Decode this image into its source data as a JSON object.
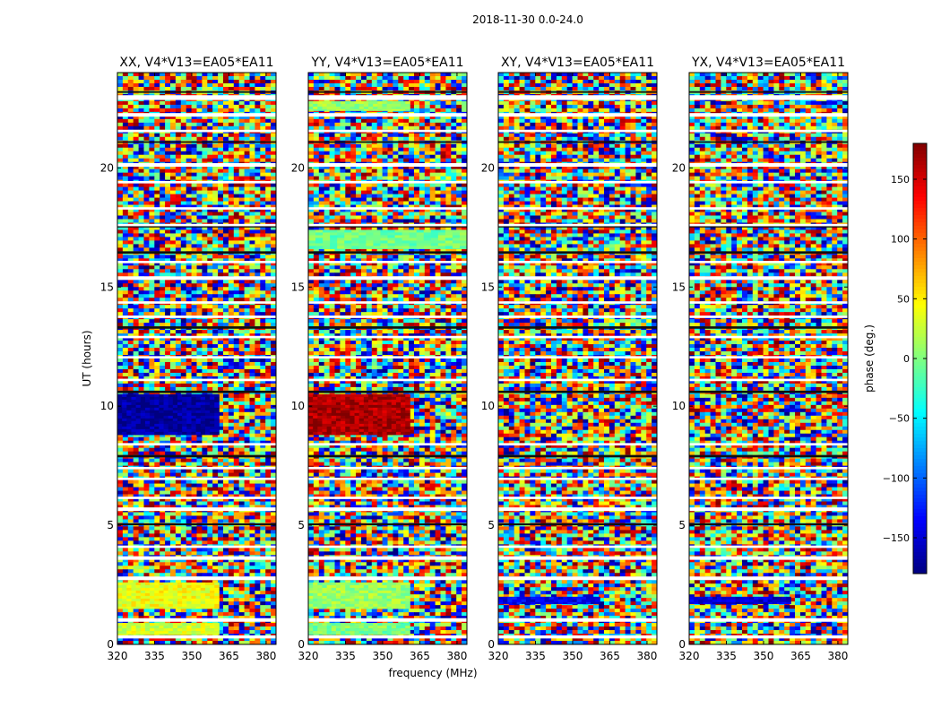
{
  "figure_title": "2018-11-30 0.0-24.0",
  "chart_data": [
    {
      "type": "heatmap",
      "title": "XX, V4*V13=EA05*EA11",
      "xlabel": "",
      "ylabel": "UT (hours)",
      "xlim": [
        320,
        384
      ],
      "ylim": [
        0,
        24
      ],
      "xticks": [
        320,
        335,
        350,
        365,
        380
      ],
      "yticks": [
        0,
        5,
        10,
        15,
        20
      ],
      "coherent_blocks": [
        {
          "t0": 8.8,
          "t1": 10.5,
          "f0": 320,
          "f1": 361,
          "phase": -170
        },
        {
          "t0": 1.5,
          "t1": 2.6,
          "f0": 320,
          "f1": 361,
          "phase": 40
        },
        {
          "t0": 0.4,
          "t1": 0.9,
          "f0": 320,
          "f1": 361,
          "phase": 30
        }
      ]
    },
    {
      "type": "heatmap",
      "title": "YY, V4*V13=EA05*EA11",
      "xlabel": "frequency (MHz)",
      "ylabel": "",
      "xlim": [
        320,
        384
      ],
      "ylim": [
        0,
        24
      ],
      "xticks": [
        320,
        335,
        350,
        365,
        380
      ],
      "yticks": [
        0,
        5,
        10,
        15,
        20
      ],
      "coherent_blocks": [
        {
          "t0": 8.8,
          "t1": 10.5,
          "f0": 320,
          "f1": 361,
          "phase": 165
        },
        {
          "t0": 16.6,
          "t1": 17.4,
          "f0": 320,
          "f1": 384,
          "phase": -5
        },
        {
          "t0": 22.4,
          "t1": 22.8,
          "f0": 320,
          "f1": 361,
          "phase": 10
        },
        {
          "t0": 1.5,
          "t1": 2.6,
          "f0": 320,
          "f1": 361,
          "phase": 10
        },
        {
          "t0": 0.4,
          "t1": 0.9,
          "f0": 320,
          "f1": 361,
          "phase": 0
        }
      ]
    },
    {
      "type": "heatmap",
      "title": "XY, V4*V13=EA05*EA11",
      "xlabel": "",
      "ylabel": "",
      "xlim": [
        320,
        384
      ],
      "ylim": [
        0,
        24
      ],
      "xticks": [
        320,
        335,
        350,
        365,
        380
      ],
      "yticks": [
        0,
        5,
        10,
        15,
        20
      ],
      "coherent_blocks": [
        {
          "t0": 1.7,
          "t1": 2.0,
          "f0": 320,
          "f1": 361,
          "phase": -140
        }
      ]
    },
    {
      "type": "heatmap",
      "title": "YX, V4*V13=EA05*EA11",
      "xlabel": "",
      "ylabel": "",
      "xlim": [
        320,
        384
      ],
      "ylim": [
        0,
        24
      ],
      "xticks": [
        320,
        335,
        350,
        365,
        380
      ],
      "yticks": [
        0,
        5,
        10,
        15,
        20
      ],
      "coherent_blocks": [
        {
          "t0": 1.7,
          "t1": 2.0,
          "f0": 320,
          "f1": 361,
          "phase": -150
        }
      ]
    }
  ],
  "shared": {
    "flagged_time_ranges": [
      [
        0.25,
        0.38
      ],
      [
        0.95,
        1.1
      ],
      [
        2.7,
        2.85
      ],
      [
        3.55,
        3.7
      ],
      [
        4.05,
        4.15
      ],
      [
        5.6,
        5.75
      ],
      [
        6.1,
        6.2
      ],
      [
        6.9,
        7.0
      ],
      [
        7.35,
        7.45
      ],
      [
        8.35,
        8.45
      ],
      [
        11.05,
        11.15
      ],
      [
        12.0,
        12.1
      ],
      [
        12.85,
        12.95
      ],
      [
        13.7,
        13.8
      ],
      [
        14.3,
        14.4
      ],
      [
        15.3,
        15.45
      ],
      [
        16.0,
        16.1
      ],
      [
        17.55,
        17.65
      ],
      [
        18.25,
        18.35
      ],
      [
        19.35,
        19.45
      ],
      [
        20.05,
        20.2
      ],
      [
        21.5,
        21.6
      ],
      [
        22.15,
        22.3
      ],
      [
        22.85,
        23.05
      ]
    ],
    "dark_time_ranges": [
      [
        5.0,
        5.08
      ],
      [
        7.85,
        7.95
      ],
      [
        10.55,
        10.65
      ],
      [
        13.25,
        13.35
      ],
      [
        16.4,
        16.5
      ],
      [
        17.5,
        17.55
      ],
      [
        21.05,
        21.12
      ],
      [
        23.15,
        23.22
      ]
    ]
  },
  "colorbar": {
    "label": "phase (deg.)",
    "vmin": -180,
    "vmax": 180,
    "ticks": [
      -150,
      -100,
      -50,
      0,
      50,
      100,
      150
    ],
    "tick_labels": [
      "−150",
      "−100",
      "−50",
      "0",
      "50",
      "100",
      "150"
    ],
    "colormap": "jet"
  },
  "colors": {
    "frame": "#000000",
    "flag": "#ffffff",
    "dark": "#101010"
  }
}
